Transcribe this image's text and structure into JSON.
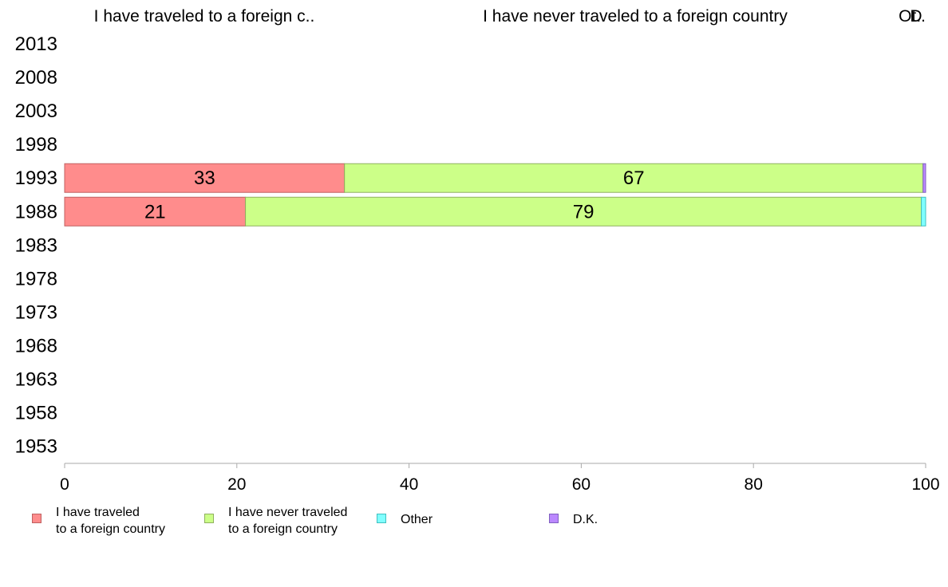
{
  "chart_data": {
    "type": "bar",
    "orientation": "horizontal",
    "stacked": true,
    "categories": [
      "2013",
      "2008",
      "2003",
      "1998",
      "1993",
      "1988",
      "1983",
      "1978",
      "1973",
      "1968",
      "1963",
      "1958",
      "1953"
    ],
    "series": [
      {
        "name": "I have traveled to a foreign country",
        "color": "#ff8c8c",
        "values": [
          null,
          null,
          null,
          null,
          32.5,
          21,
          null,
          null,
          null,
          null,
          null,
          null,
          null
        ]
      },
      {
        "name": "I have never traveled to a foreign country",
        "color": "#ccff88",
        "values": [
          null,
          null,
          null,
          null,
          67.2,
          78.5,
          null,
          null,
          null,
          null,
          null,
          null,
          null
        ]
      },
      {
        "name": "Other",
        "color": "#80ffff",
        "values": [
          null,
          null,
          null,
          null,
          0,
          0.5,
          null,
          null,
          null,
          null,
          null,
          null,
          null
        ]
      },
      {
        "name": "D.K.",
        "color": "#bb88ff",
        "values": [
          null,
          null,
          null,
          null,
          0.3,
          0,
          null,
          null,
          null,
          null,
          null,
          null,
          null
        ]
      }
    ],
    "data_labels": [
      {
        "category": "1993",
        "series": 0,
        "text": "33"
      },
      {
        "category": "1993",
        "series": 1,
        "text": "67"
      },
      {
        "category": "1988",
        "series": 0,
        "text": "21"
      },
      {
        "category": "1988",
        "series": 1,
        "text": "79"
      }
    ],
    "top_labels": [
      "I have traveled to a foreign c..",
      "I have never traveled to a foreign country",
      "D",
      "Ot.."
    ],
    "xlim": [
      0,
      100
    ],
    "xticks": [
      "0",
      "20",
      "40",
      "60",
      "80",
      "100"
    ],
    "grid": false,
    "legend_position": "bottom",
    "legend": [
      {
        "label": "I have traveled\nto a foreign country",
        "color": "#ff8c8c"
      },
      {
        "label": "I have never traveled\nto a foreign country",
        "color": "#ccff88"
      },
      {
        "label": "Other",
        "color": "#80ffff"
      },
      {
        "label": "D.K.",
        "color": "#bb88ff"
      }
    ]
  }
}
